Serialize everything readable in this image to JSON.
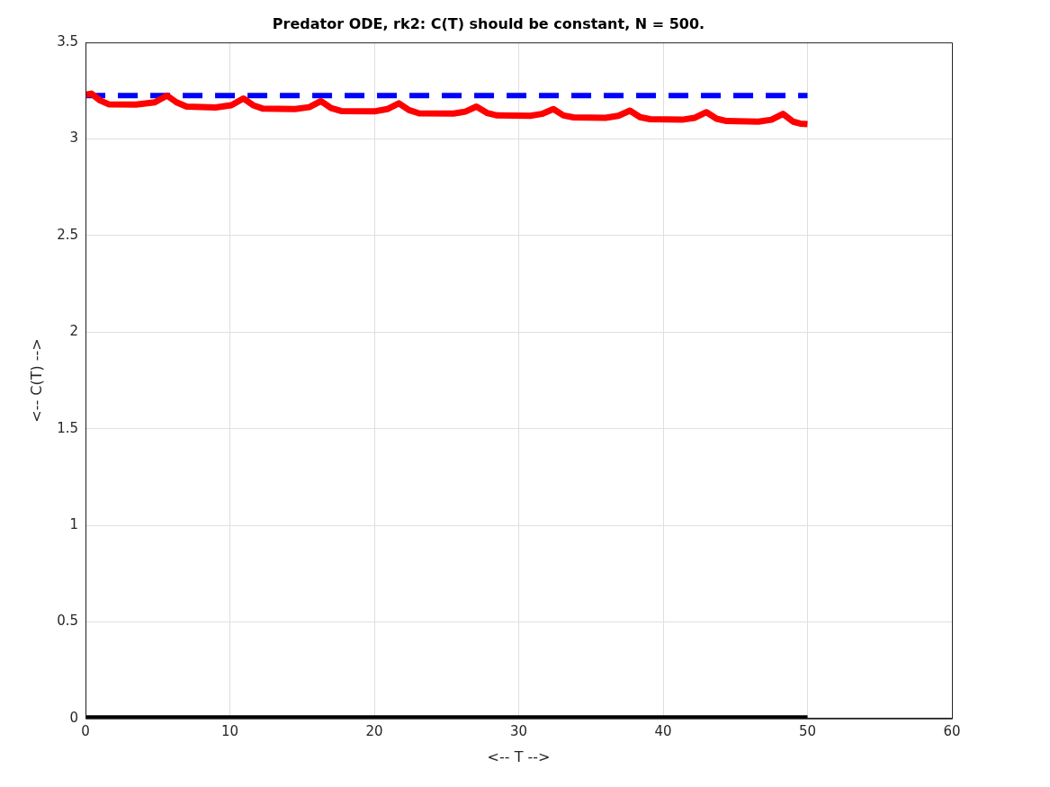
{
  "chart_data": {
    "type": "line",
    "title": "Predator ODE, rk2: C(T) should be constant, N = 500.",
    "xlabel": "<-- T -->",
    "ylabel": "<-- C(T) -->",
    "xlim": [
      0,
      60
    ],
    "xticks": [
      0,
      10,
      20,
      30,
      40,
      50,
      60
    ],
    "ylim": [
      0,
      3.5
    ],
    "yticks": [
      0,
      0.5,
      1,
      1.5,
      2,
      2.5,
      3,
      3.5
    ],
    "grid": true,
    "marker": "none",
    "series": [
      {
        "color": "#ff0000",
        "line_style": "solid",
        "x": [
          0,
          0.4,
          1.0,
          1.6,
          3.5,
          4.8,
          5.64,
          6.3,
          7.0,
          9,
          10.1,
          10.93,
          11.6,
          12.3,
          14.5,
          15.5,
          16.3,
          17.0,
          17.7,
          20,
          20.9,
          21.7,
          22.4,
          23.1,
          25.5,
          26.3,
          27.07,
          27.8,
          28.5,
          30.8,
          31.6,
          32.4,
          33.1,
          33.8,
          36,
          36.9,
          37.7,
          38.4,
          39.1,
          41.3,
          42.2,
          43.0,
          43.7,
          44.4,
          46.6,
          47.5,
          48.3,
          49.0,
          49.5,
          50
        ],
        "values": [
          3.23,
          3.235,
          3.2,
          3.18,
          3.178,
          3.19,
          3.225,
          3.19,
          3.168,
          3.163,
          3.175,
          3.21,
          3.175,
          3.157,
          3.155,
          3.165,
          3.196,
          3.16,
          3.145,
          3.143,
          3.155,
          3.185,
          3.15,
          3.133,
          3.132,
          3.142,
          3.168,
          3.135,
          3.122,
          3.12,
          3.13,
          3.155,
          3.122,
          3.112,
          3.11,
          3.12,
          3.147,
          3.113,
          3.103,
          3.1,
          3.11,
          3.139,
          3.105,
          3.093,
          3.09,
          3.1,
          3.13,
          3.09,
          3.08,
          3.077
        ]
      },
      {
        "color": "#0000ff",
        "line_style": "dashed",
        "x": [
          0,
          50
        ],
        "values": [
          3.225,
          3.225
        ]
      },
      {
        "color": "#000000",
        "line_style": "solid",
        "x": [
          0,
          50
        ],
        "values": [
          0,
          0
        ]
      }
    ]
  }
}
